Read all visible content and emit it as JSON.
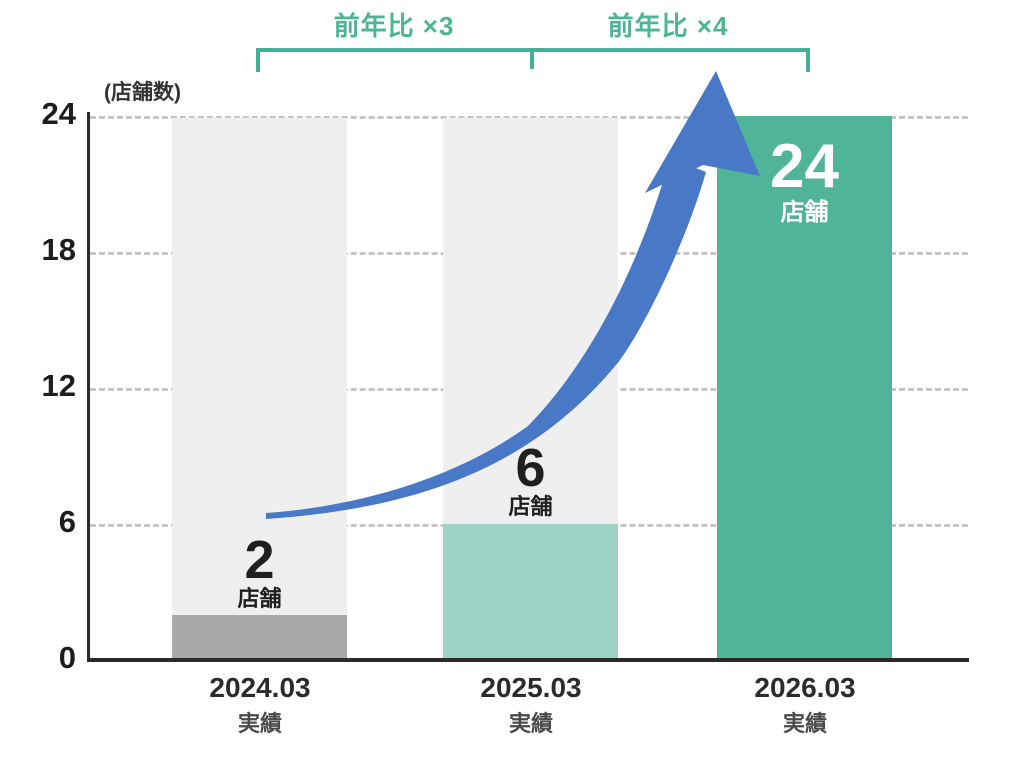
{
  "colors": {
    "bracket_green": "#45b095",
    "label_green": "#4cb694",
    "ghost_gray": "#efefef",
    "arrow_blue": "#4878c6",
    "bar_gray": "#a9a9a9",
    "bar_mint": "#9bd3c4",
    "bar_teal": "#4fb498"
  },
  "chart_data": {
    "type": "bar",
    "title": "",
    "unit_label": "(店舗数)",
    "ylabel": "店舗数",
    "ylim": [
      0,
      24
    ],
    "yticks": [
      24,
      18,
      12,
      6,
      0
    ],
    "ytick_labels": [
      "24",
      "18",
      "12",
      "6",
      "0"
    ],
    "grid": "horizontal dashed",
    "categories": [
      "2024.03",
      "2025.03",
      "2026.03"
    ],
    "category_sublabels": [
      "実績",
      "実績",
      "実績"
    ],
    "values": [
      2,
      6,
      24
    ],
    "bars": [
      {
        "value": 2,
        "value_label": "2",
        "unit": "店舗",
        "x_label": "2024.03",
        "x_sublabel": "実績",
        "color": "#a9a9a9",
        "label_position": "above"
      },
      {
        "value": 6,
        "value_label": "6",
        "unit": "店舗",
        "x_label": "2025.03",
        "x_sublabel": "実績",
        "color": "#9bd3c4",
        "label_position": "above"
      },
      {
        "value": 24,
        "value_label": "24",
        "unit": "店舗",
        "x_label": "2026.03",
        "x_sublabel": "実績",
        "color": "#4fb498",
        "label_position": "inside-top"
      }
    ],
    "annotations": {
      "brackets": [
        {
          "label": "前年比 ×3",
          "span": [
            "2024.03",
            "2025.03"
          ]
        },
        {
          "label": "前年比 ×4",
          "span": [
            "2025.03",
            "2026.03"
          ]
        }
      ],
      "growth_arrow": "curved blue arrow from bar 1 toward top of bar 3"
    },
    "background_tracks": "full-height light gray ghost bars behind 2024.03 and 2025.03"
  }
}
